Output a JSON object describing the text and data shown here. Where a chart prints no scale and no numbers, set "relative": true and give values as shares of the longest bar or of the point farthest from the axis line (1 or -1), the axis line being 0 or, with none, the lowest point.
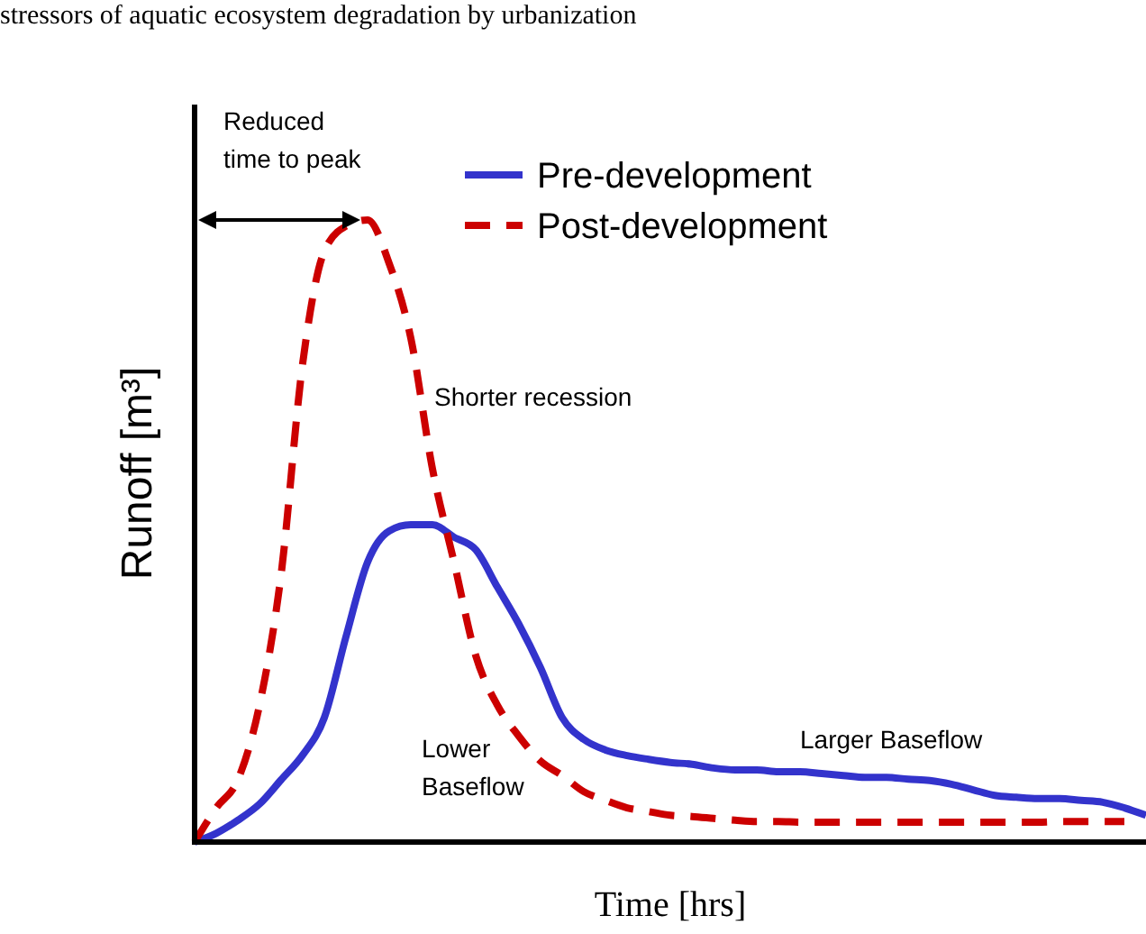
{
  "chart_data": {
    "type": "line",
    "title": "stressors of aquatic ecosystem degradation by urbanization",
    "xlabel": "Time [hrs]",
    "ylabel": "Runoff [m³]",
    "relative": true,
    "legend": "top right",
    "marker": "none",
    "categories": [
      null,
      null,
      null,
      null,
      null,
      null,
      null,
      null,
      null,
      null,
      null,
      null,
      null,
      null,
      null,
      null,
      null,
      null,
      null,
      null,
      null,
      null,
      null,
      null,
      null,
      null,
      null,
      null,
      null,
      null,
      null,
      null,
      null,
      null,
      null,
      null,
      null,
      null,
      null,
      null,
      null,
      null,
      null,
      null,
      null
    ],
    "series": [
      {
        "name": "Pre-development",
        "color": "#3333cc",
        "line_style": "solid",
        "values": [
          0,
          0.014,
          0.035,
          0.061,
          0.1,
          0.14,
          0.2,
          0.33,
          0.45,
          0.5,
          0.51,
          0.51,
          0.49,
          0.47,
          0.41,
          0.35,
          0.28,
          0.2,
          0.165,
          0.148,
          0.139,
          0.133,
          0.128,
          0.125,
          0.119,
          0.116,
          0.116,
          0.113,
          0.113,
          0.11,
          0.107,
          0.104,
          0.104,
          0.101,
          0.099,
          0.093,
          0.084,
          0.075,
          0.072,
          0.07,
          0.07,
          0.067,
          0.064,
          0.055,
          0.043
        ]
      },
      {
        "name": "Post-development",
        "color": "#cc0000",
        "line_style": "dashed",
        "values": [
          0,
          0.055,
          0.1,
          0.22,
          0.43,
          0.77,
          0.95,
          0.99,
          1,
          0.93,
          0.81,
          0.6,
          0.45,
          0.3,
          0.22,
          0.17,
          0.13,
          0.107,
          0.081,
          0.067,
          0.055,
          0.049,
          0.043,
          0.041,
          0.038,
          0.035,
          0.033,
          0.033,
          0.032,
          0.032,
          0.032,
          0.032,
          0.032,
          0.032,
          0.032,
          0.032,
          0.032,
          0.032,
          0.032,
          0.032,
          0.033,
          0.033,
          0.033,
          0.033,
          null
        ]
      }
    ],
    "annotations": [
      "Reduced time to peak",
      "Shorter recession",
      "Lower Baseflow",
      "Larger Baseflow"
    ]
  }
}
